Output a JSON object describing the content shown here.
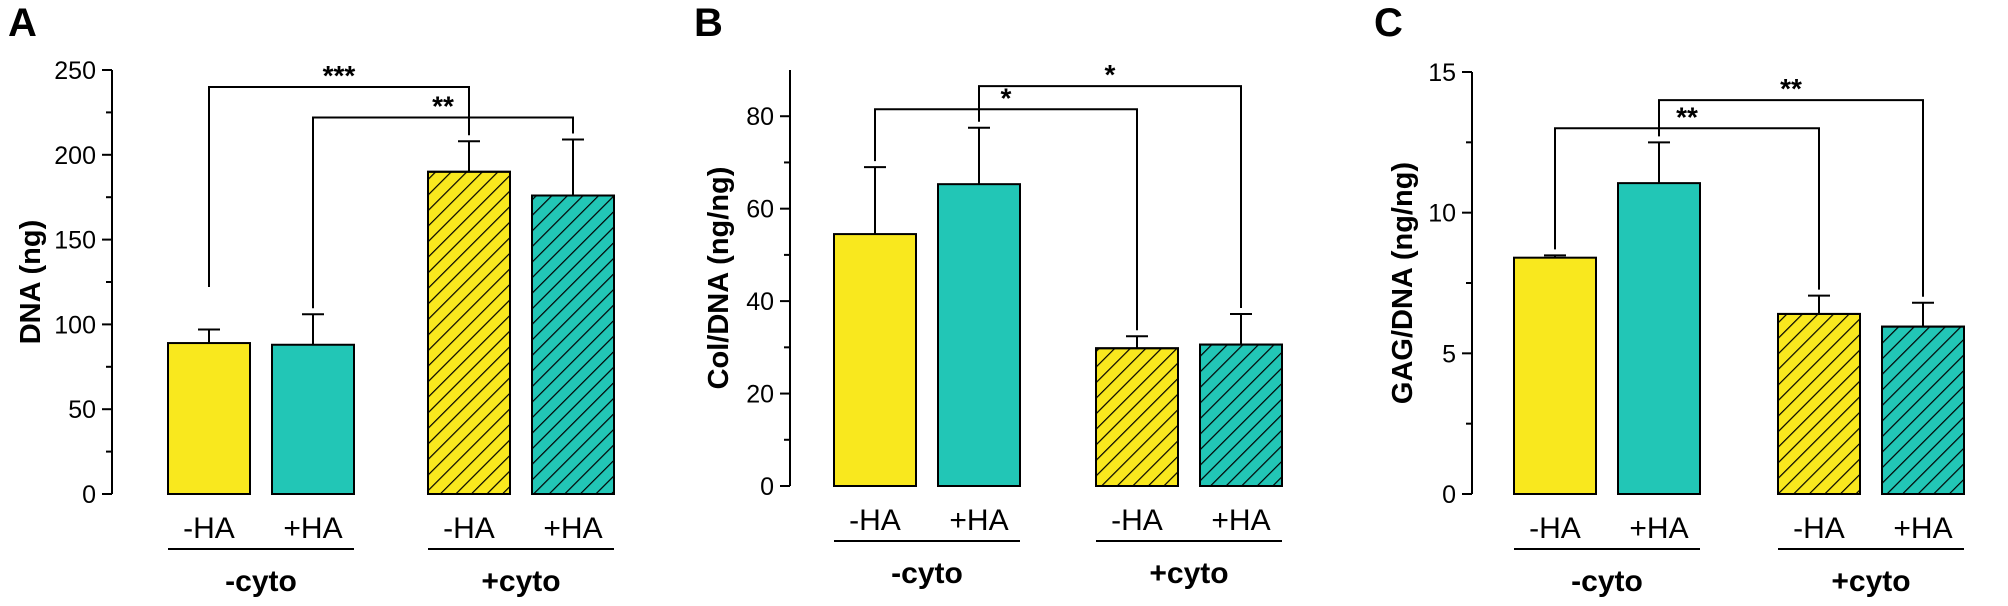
{
  "colors": {
    "yellow": "#F9E81E",
    "teal": "#22C6B6",
    "stroke": "#000000"
  },
  "chart_data": [
    {
      "type": "bar",
      "panel_label": "A",
      "ylabel": "DNA (ng)",
      "ylim": [
        0,
        250
      ],
      "yticks": [
        0,
        50,
        100,
        150,
        200,
        250
      ],
      "categories": [
        "-HA",
        "+HA",
        "-HA",
        "+HA"
      ],
      "values": [
        89,
        88,
        190,
        176
      ],
      "errors": [
        8,
        18,
        18,
        33
      ],
      "hatched": [
        false,
        false,
        true,
        true
      ],
      "fill": [
        "yellow",
        "teal",
        "yellow",
        "teal"
      ],
      "groups": [
        {
          "label": "-cyto",
          "bars": [
            0,
            1
          ]
        },
        {
          "label": "+cyto",
          "bars": [
            2,
            3
          ]
        }
      ],
      "brackets": [
        {
          "from": 0,
          "to": 2,
          "label": "***",
          "level": 240
        },
        {
          "from": 1,
          "to": 3,
          "label": "**",
          "level": 222
        }
      ]
    },
    {
      "type": "bar",
      "panel_label": "B",
      "ylabel": "Col/DNA (ng/ng)",
      "ylim": [
        0,
        90
      ],
      "yticks": [
        0,
        20,
        40,
        60,
        80
      ],
      "categories": [
        "-HA",
        "+HA",
        "-HA",
        "+HA"
      ],
      "values": [
        54.5,
        65.3,
        29.8,
        30.6
      ],
      "errors": [
        14.5,
        12.2,
        2.6,
        6.6
      ],
      "hatched": [
        false,
        false,
        true,
        true
      ],
      "fill": [
        "yellow",
        "teal",
        "yellow",
        "teal"
      ],
      "groups": [
        {
          "label": "-cyto",
          "bars": [
            0,
            1
          ]
        },
        {
          "label": "+cyto",
          "bars": [
            2,
            3
          ]
        }
      ],
      "brackets": [
        {
          "from": 0,
          "to": 2,
          "label": "*",
          "level": 81.5
        },
        {
          "from": 1,
          "to": 3,
          "label": "*",
          "level": 86.5
        }
      ]
    },
    {
      "type": "bar",
      "panel_label": "C",
      "ylabel": "GAG/DNA (ng/ng)",
      "ylim": [
        0,
        15
      ],
      "yticks": [
        0,
        5,
        10,
        15
      ],
      "categories": [
        "-HA",
        "+HA",
        "-HA",
        "+HA"
      ],
      "values": [
        8.4,
        11.05,
        6.4,
        5.95
      ],
      "errors": [
        0.08,
        1.45,
        0.65,
        0.85
      ],
      "hatched": [
        false,
        false,
        true,
        true
      ],
      "fill": [
        "yellow",
        "teal",
        "yellow",
        "teal"
      ],
      "groups": [
        {
          "label": "-cyto",
          "bars": [
            0,
            1
          ]
        },
        {
          "label": "+cyto",
          "bars": [
            2,
            3
          ]
        }
      ],
      "brackets": [
        {
          "from": 0,
          "to": 2,
          "label": "**",
          "level": 13.0
        },
        {
          "from": 1,
          "to": 3,
          "label": "**",
          "level": 14.0
        }
      ]
    }
  ]
}
